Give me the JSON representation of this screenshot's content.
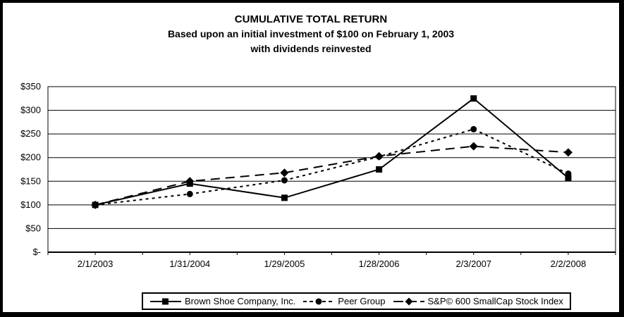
{
  "title": {
    "line1": "CUMULATIVE TOTAL RETURN",
    "line2": "Based upon an initial investment of $100 on February 1, 2003",
    "line3": "with dividends reinvested"
  },
  "chart_data": {
    "type": "line",
    "title": "CUMULATIVE TOTAL RETURN",
    "categories": [
      "2/1/2003",
      "1/31/2004",
      "1/29/2005",
      "1/28/2006",
      "2/3/2007",
      "2/2/2008"
    ],
    "series": [
      {
        "name": "Brown Shoe Company, Inc.",
        "marker": "square",
        "line_style": "solid",
        "values": [
          100,
          145,
          115,
          175,
          325,
          157
        ]
      },
      {
        "name": "Peer Group",
        "marker": "circle",
        "line_style": "dotted",
        "values": [
          100,
          123,
          152,
          202,
          260,
          166
        ]
      },
      {
        "name": "S&P© 600 SmallCap Stock Index",
        "marker": "diamond",
        "line_style": "dashed",
        "values": [
          100,
          150,
          168,
          203,
          224,
          211
        ]
      }
    ],
    "y_ticks": [
      {
        "value": 350,
        "label": "$350"
      },
      {
        "value": 300,
        "label": "$300"
      },
      {
        "value": 250,
        "label": "$250"
      },
      {
        "value": 200,
        "label": "$200"
      },
      {
        "value": 150,
        "label": "$150"
      },
      {
        "value": 100,
        "label": "$100"
      },
      {
        "value": 50,
        "label": "$50"
      },
      {
        "value": 0,
        "label": "$-"
      }
    ],
    "ylim": [
      0,
      350
    ],
    "xlabel": "",
    "ylabel": "",
    "grid": "horizontal",
    "legend_position": "bottom",
    "colors": {
      "line": "#000000",
      "background": "#ffffff"
    }
  }
}
